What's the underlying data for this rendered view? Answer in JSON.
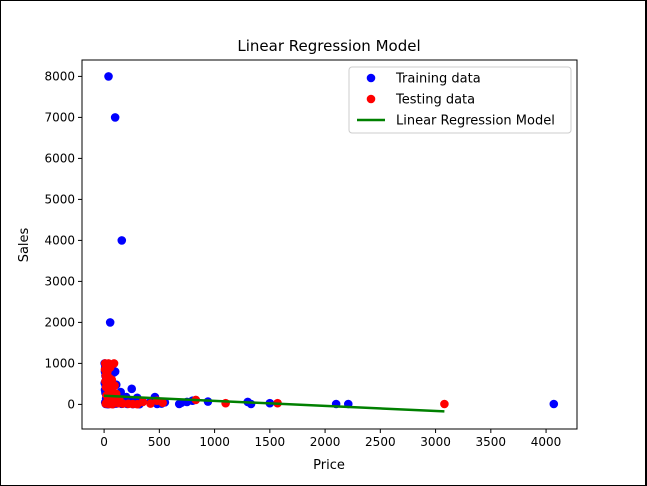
{
  "chart_data": {
    "type": "scatter",
    "title": "Linear Regression Model",
    "xlabel": "Price",
    "ylabel": "Sales",
    "xlim": [
      -200,
      4280
    ],
    "ylim": [
      -600,
      8400
    ],
    "xticks": [
      0,
      500,
      1000,
      1500,
      2000,
      2500,
      3000,
      3500,
      4000
    ],
    "yticks": [
      0,
      1000,
      2000,
      3000,
      4000,
      5000,
      6000,
      7000,
      8000
    ],
    "grid": false,
    "legend_position": "top-right",
    "series": [
      {
        "name": "Training data",
        "kind": "scatter",
        "color": "#0000ff",
        "points": [
          [
            40,
            8000
          ],
          [
            100,
            7000
          ],
          [
            160,
            4000
          ],
          [
            55,
            2000
          ],
          [
            5,
            1000
          ],
          [
            15,
            950
          ],
          [
            10,
            900
          ],
          [
            20,
            850
          ],
          [
            8,
            800
          ],
          [
            100,
            800
          ],
          [
            90,
            780
          ],
          [
            12,
            700
          ],
          [
            25,
            650
          ],
          [
            18,
            600
          ],
          [
            30,
            560
          ],
          [
            6,
            520
          ],
          [
            40,
            500
          ],
          [
            110,
            480
          ],
          [
            14,
            450
          ],
          [
            22,
            420
          ],
          [
            35,
            390
          ],
          [
            60,
            370
          ],
          [
            8,
            350
          ],
          [
            45,
            330
          ],
          [
            70,
            310
          ],
          [
            150,
            300
          ],
          [
            250,
            380
          ],
          [
            12,
            280
          ],
          [
            28,
            260
          ],
          [
            50,
            240
          ],
          [
            80,
            220
          ],
          [
            120,
            200
          ],
          [
            200,
            180
          ],
          [
            300,
            160
          ],
          [
            460,
            180
          ],
          [
            18,
            150
          ],
          [
            40,
            130
          ],
          [
            65,
            120
          ],
          [
            90,
            110
          ],
          [
            140,
            100
          ],
          [
            180,
            90
          ],
          [
            230,
            80
          ],
          [
            280,
            75
          ],
          [
            350,
            70
          ],
          [
            420,
            60
          ],
          [
            500,
            55
          ],
          [
            550,
            50
          ],
          [
            700,
            40
          ],
          [
            750,
            60
          ],
          [
            800,
            90
          ],
          [
            940,
            70
          ],
          [
            10,
            50
          ],
          [
            25,
            40
          ],
          [
            45,
            30
          ],
          [
            75,
            25
          ],
          [
            110,
            20
          ],
          [
            160,
            15
          ],
          [
            210,
            10
          ],
          [
            260,
            8
          ],
          [
            320,
            5
          ],
          [
            480,
            10
          ],
          [
            520,
            20
          ],
          [
            680,
            10
          ],
          [
            1300,
            60
          ],
          [
            1330,
            10
          ],
          [
            1500,
            30
          ],
          [
            2100,
            10
          ],
          [
            2210,
            10
          ],
          [
            4070,
            10
          ],
          [
            15,
            10
          ],
          [
            35,
            5
          ],
          [
            55,
            15
          ],
          [
            85,
            10
          ],
          [
            130,
            30
          ]
        ]
      },
      {
        "name": "Testing data",
        "kind": "scatter",
        "color": "#ff0000",
        "points": [
          [
            10,
            1000
          ],
          [
            40,
            1000
          ],
          [
            90,
            1000
          ],
          [
            20,
            950
          ],
          [
            55,
            900
          ],
          [
            8,
            850
          ],
          [
            30,
            800
          ],
          [
            15,
            700
          ],
          [
            45,
            650
          ],
          [
            70,
            600
          ],
          [
            12,
            560
          ],
          [
            25,
            500
          ],
          [
            60,
            480
          ],
          [
            95,
            460
          ],
          [
            18,
            420
          ],
          [
            35,
            380
          ],
          [
            50,
            340
          ],
          [
            80,
            300
          ],
          [
            110,
            260
          ],
          [
            22,
            220
          ],
          [
            40,
            180
          ],
          [
            65,
            150
          ],
          [
            100,
            120
          ],
          [
            140,
            100
          ],
          [
            30,
            80
          ],
          [
            55,
            60
          ],
          [
            90,
            40
          ],
          [
            130,
            30
          ],
          [
            170,
            20
          ],
          [
            220,
            15
          ],
          [
            260,
            10
          ],
          [
            300,
            5
          ],
          [
            350,
            60
          ],
          [
            420,
            20
          ],
          [
            480,
            90
          ],
          [
            530,
            40
          ],
          [
            830,
            110
          ],
          [
            1100,
            30
          ],
          [
            1570,
            30
          ],
          [
            3080,
            10
          ],
          [
            15,
            20
          ],
          [
            45,
            10
          ],
          [
            75,
            5
          ]
        ]
      },
      {
        "name": "Linear Regression Model",
        "kind": "line",
        "color": "#008000",
        "points": [
          [
            0,
            210
          ],
          [
            3080,
            -170
          ]
        ]
      }
    ]
  }
}
